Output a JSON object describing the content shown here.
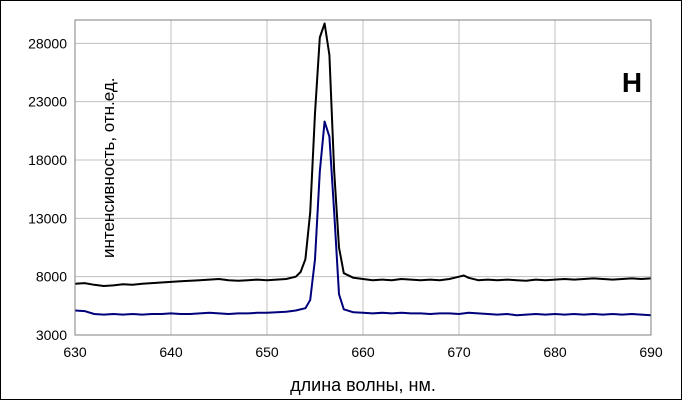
{
  "chart_data": {
    "type": "line",
    "annotation": "H",
    "xlabel": "длина волны, нм.",
    "ylabel": "интенсивность, отн.ед.",
    "xlim": [
      630,
      690
    ],
    "ylim": [
      3000,
      30000
    ],
    "x_ticks": [
      630,
      640,
      650,
      660,
      670,
      680,
      690
    ],
    "y_ticks": [
      3000,
      8000,
      13000,
      18000,
      23000,
      28000
    ],
    "grid": true,
    "legend": "none",
    "colors": {
      "upper": "#000000",
      "lower": "#00007a",
      "grid": "#c0c0c0"
    },
    "series": [
      {
        "x": [
          630,
          631,
          632,
          633,
          634,
          635,
          636,
          637,
          638,
          639,
          640,
          641,
          642,
          643,
          644,
          645,
          646,
          647,
          648,
          649,
          650,
          651,
          652,
          653,
          653.5,
          654,
          654.5,
          655,
          655.5,
          656,
          656.5,
          657,
          657.5,
          658,
          659,
          660,
          661,
          662,
          663,
          664,
          665,
          666,
          667,
          668,
          669,
          670,
          670.5,
          671,
          672,
          673,
          674,
          675,
          676,
          677,
          678,
          679,
          680,
          681,
          682,
          683,
          684,
          685,
          686,
          687,
          688,
          689,
          690
        ],
        "values": [
          7400,
          7450,
          7300,
          7200,
          7250,
          7350,
          7300,
          7400,
          7450,
          7500,
          7550,
          7600,
          7650,
          7700,
          7750,
          7800,
          7700,
          7650,
          7700,
          7750,
          7700,
          7750,
          7800,
          8000,
          8400,
          9500,
          13500,
          22000,
          28500,
          29700,
          27000,
          17000,
          10500,
          8300,
          7900,
          7800,
          7700,
          7750,
          7700,
          7800,
          7750,
          7700,
          7750,
          7700,
          7800,
          8000,
          8100,
          7900,
          7700,
          7750,
          7700,
          7750,
          7700,
          7650,
          7750,
          7700,
          7750,
          7800,
          7750,
          7800,
          7850,
          7800,
          7750,
          7800,
          7850,
          7800,
          7850
        ]
      },
      {
        "x": [
          630,
          631,
          632,
          633,
          634,
          635,
          636,
          637,
          638,
          639,
          640,
          641,
          642,
          643,
          644,
          645,
          646,
          647,
          648,
          649,
          650,
          651,
          652,
          653,
          654,
          654.5,
          655,
          655.5,
          656,
          656.5,
          657,
          657.5,
          658,
          659,
          660,
          661,
          662,
          663,
          664,
          665,
          666,
          667,
          668,
          669,
          670,
          671,
          672,
          673,
          674,
          675,
          676,
          677,
          678,
          679,
          680,
          681,
          682,
          683,
          684,
          685,
          686,
          687,
          688,
          689,
          690
        ],
        "values": [
          5100,
          5050,
          4800,
          4750,
          4800,
          4750,
          4800,
          4750,
          4800,
          4800,
          4850,
          4800,
          4800,
          4850,
          4900,
          4850,
          4800,
          4850,
          4850,
          4900,
          4900,
          4950,
          5000,
          5100,
          5300,
          6000,
          9500,
          17000,
          21300,
          20000,
          13500,
          6500,
          5200,
          4950,
          4900,
          4850,
          4900,
          4850,
          4900,
          4850,
          4850,
          4800,
          4850,
          4850,
          4800,
          4900,
          4850,
          4800,
          4750,
          4800,
          4700,
          4750,
          4800,
          4750,
          4800,
          4750,
          4800,
          4750,
          4800,
          4750,
          4800,
          4750,
          4800,
          4750,
          4700
        ]
      }
    ]
  }
}
